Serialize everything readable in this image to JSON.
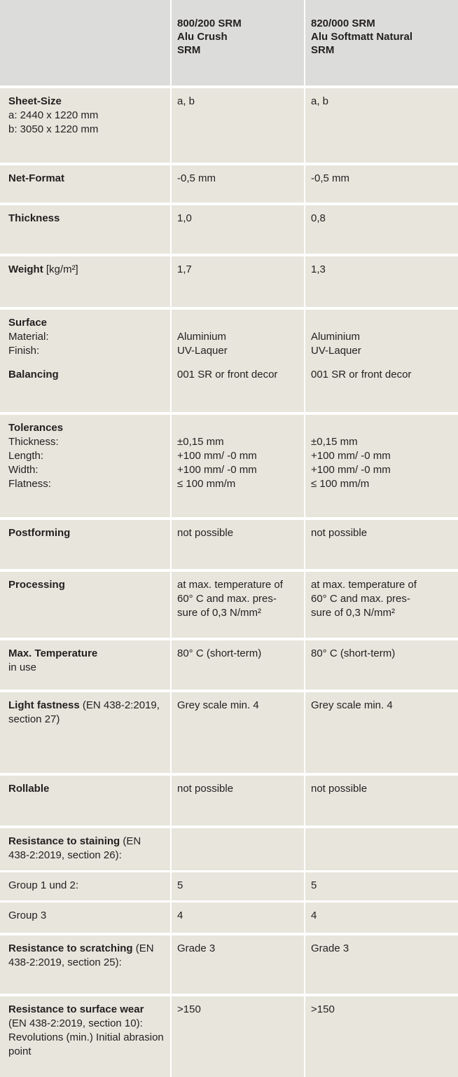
{
  "header": {
    "products": [
      {
        "code": "800/200 SRM",
        "name": "Alu Crush",
        "line": "SRM"
      },
      {
        "code": "820/000 SRM",
        "name": "Alu Softmatt Natural",
        "line": "SRM"
      }
    ]
  },
  "rows": [
    {
      "label": "Sheet-Size",
      "notes": [
        "a: 2440 x 1220 mm",
        "b: 3050 x 1220 mm"
      ],
      "values": [
        [
          "a, b"
        ],
        [
          "a, b"
        ]
      ]
    },
    {
      "label": "Net-Format",
      "values": [
        [
          "-0,5 mm"
        ],
        [
          "-0,5 mm"
        ]
      ]
    },
    {
      "label": "Thickness",
      "values": [
        [
          "1,0"
        ],
        [
          "0,8"
        ]
      ]
    },
    {
      "label": "Weight",
      "detail": "[kg/m²]",
      "values": [
        [
          "1,7"
        ],
        [
          "1,3"
        ]
      ]
    },
    {
      "label": "Surface",
      "items": [
        "Material:",
        "Finish:"
      ],
      "values": [
        [
          "Aluminium",
          "UV-Laquer"
        ],
        [
          "Aluminium",
          "UV-Laquer"
        ]
      ]
    },
    {
      "label": "Balancing",
      "values": [
        [
          "001 SR or front decor"
        ],
        [
          "001 SR or front decor"
        ]
      ]
    },
    {
      "label": "Tolerances",
      "items": [
        "Thickness:",
        "Length:",
        "Width:",
        "Flatness:"
      ],
      "values": [
        [
          "±0,15 mm",
          "+100 mm/ -0 mm",
          "+100 mm/ -0 mm",
          "≤ 100 mm/m"
        ],
        [
          "±0,15 mm",
          "+100 mm/ -0 mm",
          "+100 mm/ -0 mm",
          "≤ 100 mm/m"
        ]
      ]
    },
    {
      "label": "Postforming",
      "values": [
        [
          "not possible"
        ],
        [
          "not possible"
        ]
      ]
    },
    {
      "label": "Processing",
      "values": [
        [
          "at max. temperature of",
          "60° C and max. pres-",
          "sure of 0,3 N/mm²"
        ],
        [
          "at max. temperature of",
          "60° C and max. pres-",
          "sure of 0,3 N/mm²"
        ]
      ]
    },
    {
      "label": "Max. Temperature",
      "notes": [
        "in use"
      ],
      "values": [
        [
          "80° C (short-term)"
        ],
        [
          "80° C (short-term)"
        ]
      ]
    },
    {
      "label": "Light fastness",
      "detail": "(EN 438-2:2019, section 27)",
      "values": [
        [
          "Grey scale min. 4"
        ],
        [
          "Grey scale min. 4"
        ]
      ]
    },
    {
      "label": "Rollable",
      "values": [
        [
          "not possible"
        ],
        [
          "not possible"
        ]
      ]
    },
    {
      "label": "Resistance to staining",
      "detail": "(EN 438-2:2019, section 26):",
      "groups": [
        {
          "label": "Group 1 und 2:",
          "values": [
            "5",
            "5"
          ]
        },
        {
          "label": "Group 3",
          "values": [
            "4",
            "4"
          ]
        }
      ]
    },
    {
      "label": "Resistance to scratching",
      "detail": "(EN 438-2:2019, section 25):",
      "values": [
        [
          "Grade 3"
        ],
        [
          "Grade 3"
        ]
      ]
    },
    {
      "label": "Resistance to surface wear",
      "detail": "(EN 438-2:2019, section 10): Revolutions (min.) Initial abrasion point",
      "values": [
        [
          ">150"
        ],
        [
          ">150"
        ]
      ]
    }
  ]
}
